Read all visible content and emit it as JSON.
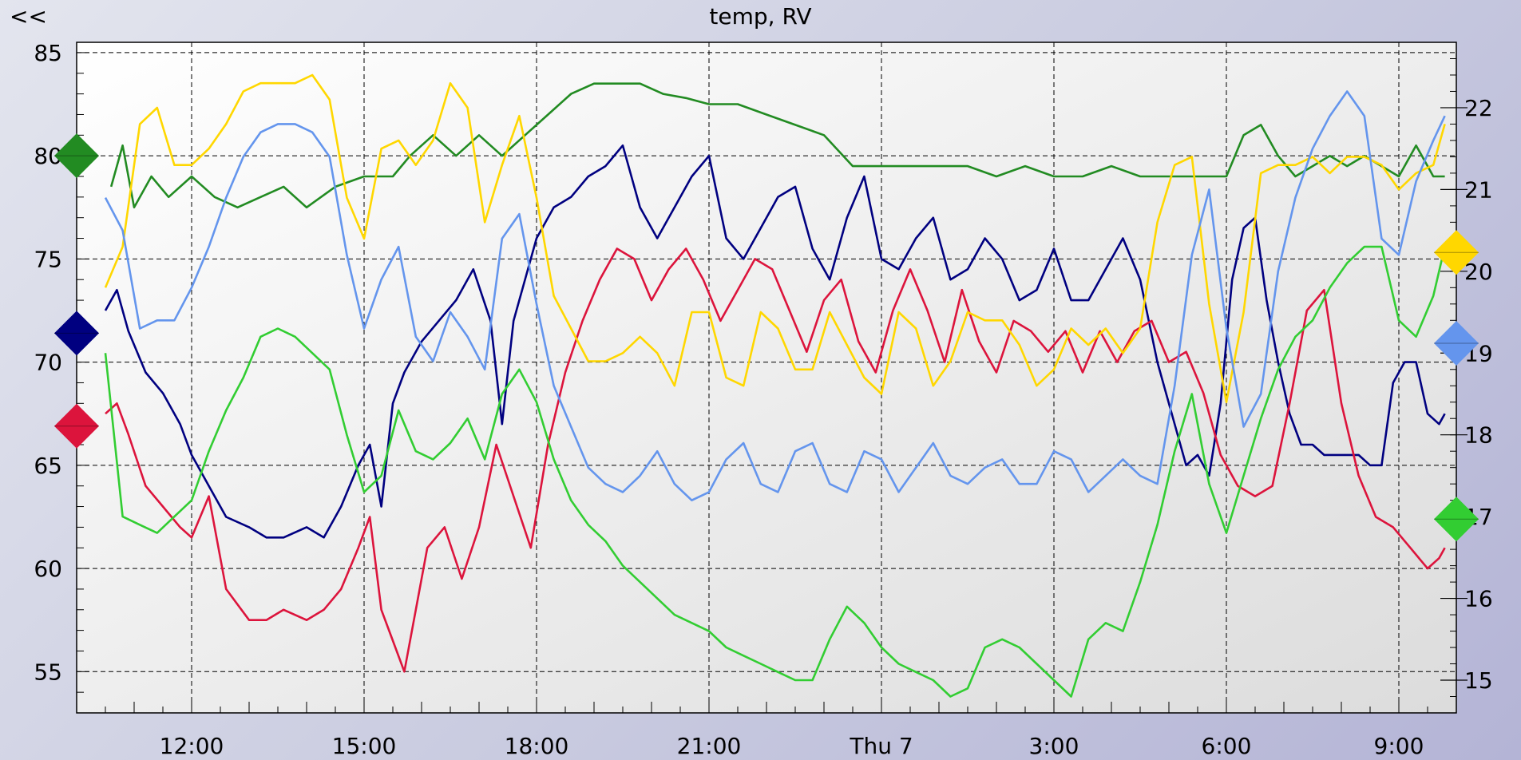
{
  "nav": {
    "back_label": "<<"
  },
  "chart_data": {
    "type": "line",
    "title": "temp, RV",
    "grid": true,
    "legend": "none",
    "x_range": [
      "10:00",
      "10:50 next day"
    ],
    "x_ticks": [
      "12:00",
      "15:00",
      "18:00",
      "21:00",
      "Thu 7",
      "3:00",
      "6:00",
      "9:00"
    ],
    "y_left": {
      "range": [
        53.0,
        85.5
      ],
      "ticks": [
        55,
        60,
        65,
        70,
        75,
        80,
        85
      ]
    },
    "y_right": {
      "range": [
        14.6,
        22.8
      ],
      "ticks": [
        15,
        16,
        17,
        18,
        19,
        20,
        21,
        22
      ]
    },
    "axis_markers": [
      {
        "axis": "left",
        "value": 80.0,
        "color": "#228b22"
      },
      {
        "axis": "left",
        "value": 71.4,
        "color": "#000080"
      },
      {
        "axis": "left",
        "value": 66.9,
        "color": "#dc143c"
      },
      {
        "axis": "right",
        "value": 20.23,
        "color": "#ffd700"
      },
      {
        "axis": "right",
        "value": 19.12,
        "color": "#6495ed"
      },
      {
        "axis": "right",
        "value": 16.97,
        "color": "#32cd32"
      }
    ],
    "series": [
      {
        "axis": "left",
        "color": "#228b22",
        "x": [
          10.6,
          10.8,
          11.0,
          11.3,
          11.6,
          12.0,
          12.4,
          12.8,
          13.2,
          13.6,
          14.0,
          14.5,
          15.0,
          15.5,
          15.8,
          16.2,
          16.6,
          17.0,
          17.4,
          17.8,
          18.2,
          18.6,
          19.0,
          19.4,
          19.8,
          20.2,
          20.6,
          21.0,
          21.5,
          22.0,
          22.5,
          23.0,
          23.5,
          24.0,
          24.5,
          25.0,
          25.5,
          26.0,
          26.5,
          27.0,
          27.5,
          28.0,
          28.5,
          29.0,
          29.5,
          30.0,
          30.3,
          30.6,
          30.9,
          31.2,
          31.5,
          31.8,
          32.1,
          32.4,
          32.7,
          33.0,
          33.3,
          33.6,
          33.8
        ],
        "y": [
          78.5,
          80.5,
          77.5,
          79.0,
          78.0,
          79.0,
          78.0,
          77.5,
          78.0,
          78.5,
          77.5,
          78.5,
          79.0,
          79.0,
          80.0,
          81.0,
          80.0,
          81.0,
          80.0,
          81.0,
          82.0,
          83.0,
          83.5,
          83.5,
          83.5,
          83.0,
          82.8,
          82.5,
          82.5,
          82.0,
          81.5,
          81.0,
          79.5,
          79.5,
          79.5,
          79.5,
          79.5,
          79.0,
          79.5,
          79.0,
          79.0,
          79.5,
          79.0,
          79.0,
          79.0,
          79.0,
          81.0,
          81.5,
          80.0,
          79.0,
          79.5,
          80.0,
          79.5,
          80.0,
          79.5,
          79.0,
          80.5,
          79.0,
          79.0
        ]
      },
      {
        "axis": "left",
        "color": "#000080",
        "x": [
          10.5,
          10.7,
          10.9,
          11.2,
          11.5,
          11.8,
          12.0,
          12.3,
          12.6,
          13.0,
          13.3,
          13.6,
          14.0,
          14.3,
          14.6,
          14.9,
          15.1,
          15.3,
          15.5,
          15.7,
          16.0,
          16.3,
          16.6,
          16.9,
          17.2,
          17.4,
          17.6,
          17.8,
          18.0,
          18.3,
          18.6,
          18.9,
          19.2,
          19.5,
          19.8,
          20.1,
          20.4,
          20.7,
          21.0,
          21.3,
          21.6,
          21.9,
          22.2,
          22.5,
          22.8,
          23.1,
          23.4,
          23.7,
          24.0,
          24.3,
          24.6,
          24.9,
          25.2,
          25.5,
          25.8,
          26.1,
          26.4,
          26.7,
          27.0,
          27.3,
          27.6,
          27.9,
          28.2,
          28.5,
          28.8,
          29.1,
          29.3,
          29.5,
          29.7,
          29.9,
          30.1,
          30.3,
          30.5,
          30.7,
          30.9,
          31.1,
          31.3,
          31.5,
          31.7,
          31.9,
          32.1,
          32.3,
          32.5,
          32.7,
          32.9,
          33.1,
          33.3,
          33.5,
          33.7,
          33.8
        ],
        "y": [
          72.5,
          73.5,
          71.5,
          69.5,
          68.5,
          67.0,
          65.5,
          64.0,
          62.5,
          62.0,
          61.5,
          61.5,
          62.0,
          61.5,
          63.0,
          65.0,
          66.0,
          63.0,
          68.0,
          69.5,
          71.0,
          72.0,
          73.0,
          74.5,
          72.0,
          67.0,
          72.0,
          74.0,
          76.0,
          77.5,
          78.0,
          79.0,
          79.5,
          80.5,
          77.5,
          76.0,
          77.5,
          79.0,
          80.0,
          76.0,
          75.0,
          76.5,
          78.0,
          78.5,
          75.5,
          74.0,
          77.0,
          79.0,
          75.0,
          74.5,
          76.0,
          77.0,
          74.0,
          74.5,
          76.0,
          75.0,
          73.0,
          73.5,
          75.5,
          73.0,
          73.0,
          74.5,
          76.0,
          74.0,
          70.0,
          67.0,
          65.0,
          65.5,
          64.5,
          68.0,
          74.0,
          76.5,
          77.0,
          73.0,
          70.0,
          67.5,
          66.0,
          66.0,
          65.5,
          65.5,
          65.5,
          65.5,
          65.0,
          65.0,
          69.0,
          70.0,
          70.0,
          67.5,
          67.0,
          67.5
        ]
      },
      {
        "axis": "left",
        "color": "#dc143c",
        "x": [
          10.5,
          10.7,
          10.9,
          11.2,
          11.5,
          11.8,
          12.0,
          12.3,
          12.6,
          13.0,
          13.3,
          13.6,
          14.0,
          14.3,
          14.6,
          14.9,
          15.1,
          15.3,
          15.5,
          15.7,
          15.9,
          16.1,
          16.4,
          16.7,
          17.0,
          17.3,
          17.6,
          17.9,
          18.2,
          18.5,
          18.8,
          19.1,
          19.4,
          19.7,
          20.0,
          20.3,
          20.6,
          20.9,
          21.2,
          21.5,
          21.8,
          22.1,
          22.4,
          22.7,
          23.0,
          23.3,
          23.6,
          23.9,
          24.2,
          24.5,
          24.8,
          25.1,
          25.4,
          25.7,
          26.0,
          26.3,
          26.6,
          26.9,
          27.2,
          27.5,
          27.8,
          28.1,
          28.4,
          28.7,
          29.0,
          29.3,
          29.6,
          29.9,
          30.2,
          30.5,
          30.8,
          31.1,
          31.4,
          31.7,
          32.0,
          32.3,
          32.6,
          32.9,
          33.2,
          33.5,
          33.7,
          33.8
        ],
        "y": [
          67.5,
          68.0,
          66.5,
          64.0,
          63.0,
          62.0,
          61.5,
          63.5,
          59.0,
          57.5,
          57.5,
          58.0,
          57.5,
          58.0,
          59.0,
          61.0,
          62.5,
          58.0,
          56.5,
          55.0,
          58.0,
          61.0,
          62.0,
          59.5,
          62.0,
          66.0,
          63.5,
          61.0,
          66.0,
          69.5,
          72.0,
          74.0,
          75.5,
          75.0,
          73.0,
          74.5,
          75.5,
          74.0,
          72.0,
          73.5,
          75.0,
          74.5,
          72.5,
          70.5,
          73.0,
          74.0,
          71.0,
          69.5,
          72.5,
          74.5,
          72.5,
          70.0,
          73.5,
          71.0,
          69.5,
          72.0,
          71.5,
          70.5,
          71.5,
          69.5,
          71.5,
          70.0,
          71.5,
          72.0,
          70.0,
          70.5,
          68.5,
          65.5,
          64.0,
          63.5,
          64.0,
          68.0,
          72.5,
          73.5,
          68.0,
          64.5,
          62.5,
          62.0,
          61.0,
          60.0,
          60.5,
          61.0
        ]
      },
      {
        "axis": "right",
        "color": "#ffd700",
        "x": [
          10.5,
          10.8,
          11.1,
          11.4,
          11.7,
          12.0,
          12.3,
          12.6,
          12.9,
          13.2,
          13.5,
          13.8,
          14.1,
          14.4,
          14.7,
          15.0,
          15.3,
          15.6,
          15.9,
          16.2,
          16.5,
          16.8,
          17.1,
          17.4,
          17.7,
          18.0,
          18.3,
          18.6,
          18.9,
          19.2,
          19.5,
          19.8,
          20.1,
          20.4,
          20.7,
          21.0,
          21.3,
          21.6,
          21.9,
          22.2,
          22.5,
          22.8,
          23.1,
          23.4,
          23.7,
          24.0,
          24.3,
          24.6,
          24.9,
          25.2,
          25.5,
          25.8,
          26.1,
          26.4,
          26.7,
          27.0,
          27.3,
          27.6,
          27.9,
          28.2,
          28.5,
          28.8,
          29.1,
          29.4,
          29.7,
          30.0,
          30.3,
          30.6,
          30.9,
          31.2,
          31.5,
          31.8,
          32.1,
          32.4,
          32.7,
          33.0,
          33.3,
          33.6,
          33.8
        ],
        "y": [
          19.8,
          20.3,
          21.8,
          22.0,
          21.3,
          21.3,
          21.5,
          21.8,
          22.2,
          22.3,
          22.3,
          22.3,
          22.4,
          22.1,
          20.9,
          20.4,
          21.5,
          21.6,
          21.3,
          21.6,
          22.3,
          22.0,
          20.6,
          21.3,
          21.9,
          20.9,
          19.7,
          19.3,
          18.9,
          18.9,
          19.0,
          19.2,
          19.0,
          18.6,
          19.5,
          19.5,
          18.7,
          18.6,
          19.5,
          19.3,
          18.8,
          18.8,
          19.5,
          19.1,
          18.7,
          18.5,
          19.5,
          19.3,
          18.6,
          18.9,
          19.5,
          19.4,
          19.4,
          19.1,
          18.6,
          18.8,
          19.3,
          19.1,
          19.3,
          19.0,
          19.3,
          20.6,
          21.3,
          21.4,
          19.6,
          18.4,
          19.5,
          21.2,
          21.3,
          21.3,
          21.4,
          21.2,
          21.4,
          21.4,
          21.3,
          21.0,
          21.2,
          21.3,
          21.8
        ]
      },
      {
        "axis": "right",
        "color": "#6495ed",
        "x": [
          10.5,
          10.8,
          11.1,
          11.4,
          11.7,
          12.0,
          12.3,
          12.6,
          12.9,
          13.2,
          13.5,
          13.8,
          14.1,
          14.4,
          14.7,
          15.0,
          15.3,
          15.6,
          15.9,
          16.2,
          16.5,
          16.8,
          17.1,
          17.4,
          17.7,
          18.0,
          18.3,
          18.6,
          18.9,
          19.2,
          19.5,
          19.8,
          20.1,
          20.4,
          20.7,
          21.0,
          21.3,
          21.6,
          21.9,
          22.2,
          22.5,
          22.8,
          23.1,
          23.4,
          23.7,
          24.0,
          24.3,
          24.6,
          24.9,
          25.2,
          25.5,
          25.8,
          26.1,
          26.4,
          26.7,
          27.0,
          27.3,
          27.6,
          27.9,
          28.2,
          28.5,
          28.8,
          29.1,
          29.4,
          29.7,
          30.0,
          30.3,
          30.6,
          30.9,
          31.2,
          31.5,
          31.8,
          32.1,
          32.4,
          32.7,
          33.0,
          33.3,
          33.6,
          33.8
        ],
        "y": [
          20.9,
          20.5,
          19.3,
          19.4,
          19.4,
          19.8,
          20.3,
          20.9,
          21.4,
          21.7,
          21.8,
          21.8,
          21.7,
          21.4,
          20.2,
          19.3,
          19.9,
          20.3,
          19.2,
          18.9,
          19.5,
          19.2,
          18.8,
          20.4,
          20.7,
          19.6,
          18.6,
          18.1,
          17.6,
          17.4,
          17.3,
          17.5,
          17.8,
          17.4,
          17.2,
          17.3,
          17.7,
          17.9,
          17.4,
          17.3,
          17.8,
          17.9,
          17.4,
          17.3,
          17.8,
          17.7,
          17.3,
          17.6,
          17.9,
          17.5,
          17.4,
          17.6,
          17.7,
          17.4,
          17.4,
          17.8,
          17.7,
          17.3,
          17.5,
          17.7,
          17.5,
          17.4,
          18.6,
          20.2,
          21.0,
          19.3,
          18.1,
          18.5,
          20.0,
          20.9,
          21.5,
          21.9,
          22.2,
          21.9,
          20.4,
          20.2,
          21.1,
          21.6,
          21.9
        ]
      },
      {
        "axis": "right",
        "color": "#32cd32",
        "x": [
          10.5,
          10.8,
          11.1,
          11.4,
          11.7,
          12.0,
          12.3,
          12.6,
          12.9,
          13.2,
          13.5,
          13.8,
          14.1,
          14.4,
          14.7,
          15.0,
          15.3,
          15.6,
          15.9,
          16.2,
          16.5,
          16.8,
          17.1,
          17.4,
          17.7,
          18.0,
          18.3,
          18.6,
          18.9,
          19.2,
          19.5,
          19.8,
          20.1,
          20.4,
          20.7,
          21.0,
          21.3,
          21.6,
          21.9,
          22.2,
          22.5,
          22.8,
          23.1,
          23.4,
          23.7,
          24.0,
          24.3,
          24.6,
          24.9,
          25.2,
          25.5,
          25.8,
          26.1,
          26.4,
          26.7,
          27.0,
          27.3,
          27.6,
          27.9,
          28.2,
          28.5,
          28.8,
          29.1,
          29.4,
          29.7,
          30.0,
          30.3,
          30.6,
          30.9,
          31.2,
          31.5,
          31.8,
          32.1,
          32.4,
          32.7,
          33.0,
          33.3,
          33.6,
          33.8
        ],
        "y": [
          19.0,
          17.0,
          16.9,
          16.8,
          17.0,
          17.2,
          17.8,
          18.3,
          18.7,
          19.2,
          19.3,
          19.2,
          19.0,
          18.8,
          18.0,
          17.3,
          17.5,
          18.3,
          17.8,
          17.7,
          17.9,
          18.2,
          17.7,
          18.5,
          18.8,
          18.4,
          17.7,
          17.2,
          16.9,
          16.7,
          16.4,
          16.2,
          16.0,
          15.8,
          15.7,
          15.6,
          15.4,
          15.3,
          15.2,
          15.1,
          15.0,
          15.0,
          15.5,
          15.9,
          15.7,
          15.4,
          15.2,
          15.1,
          15.0,
          14.8,
          14.9,
          15.4,
          15.5,
          15.4,
          15.2,
          15.0,
          14.8,
          15.5,
          15.7,
          15.6,
          16.2,
          16.9,
          17.8,
          18.5,
          17.4,
          16.8,
          17.5,
          18.2,
          18.8,
          19.2,
          19.4,
          19.8,
          20.1,
          20.3,
          20.3,
          19.4,
          19.2,
          19.7,
          20.3
        ]
      }
    ]
  }
}
